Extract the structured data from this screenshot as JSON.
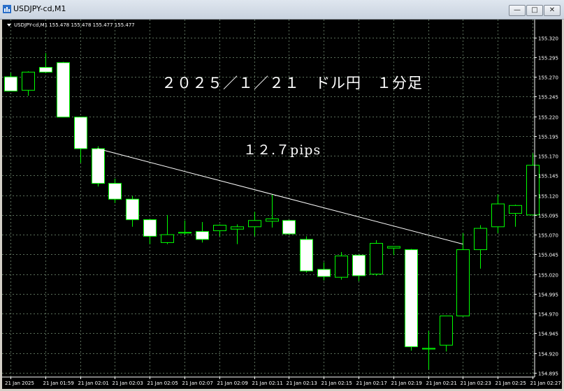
{
  "window": {
    "title": "USDJPY-cd,M1",
    "min_label": "—",
    "max_label": "□",
    "close_label": "✕"
  },
  "info_line": "USDJPY-cd,M1  155.478 155.478 155.477 155.477",
  "annotation_title": "２０２５／１／２１　ドル円　１分足",
  "annotation_pips": "１２.７pips",
  "colors": {
    "bull": "#00ff00",
    "bear_fill": "#ffffff",
    "grid": "#5a6e5a",
    "trendline": "#ffffff"
  },
  "chart_data": {
    "type": "candlestick",
    "title": "",
    "ylim": [
      154.89,
      155.33
    ],
    "yticks": [
      "155.320",
      "155.295",
      "155.270",
      "155.245",
      "155.220",
      "155.195",
      "155.170",
      "155.145",
      "155.120",
      "155.095",
      "155.070",
      "155.045",
      "155.020",
      "154.995",
      "154.970",
      "154.945",
      "154.920",
      "154.895"
    ],
    "xtick_labels": [
      "21 Jan 2025",
      "21 Jan 01:59",
      "21 Jan 02:01",
      "21 Jan 02:03",
      "21 Jan 02:05",
      "21 Jan 02:07",
      "21 Jan 02:09",
      "21 Jan 02:11",
      "21 Jan 02:13",
      "21 Jan 02:15",
      "21 Jan 02:17",
      "21 Jan 02:19",
      "21 Jan 02:21",
      "21 Jan 02:23",
      "21 Jan 02:25",
      "21 Jan 02:27"
    ],
    "candles": [
      {
        "o": 155.27,
        "h": 155.275,
        "l": 155.252,
        "c": 155.252
      },
      {
        "o": 155.253,
        "h": 155.277,
        "l": 155.246,
        "c": 155.276
      },
      {
        "o": 155.282,
        "h": 155.3,
        "l": 155.275,
        "c": 155.276
      },
      {
        "o": 155.288,
        "h": 155.289,
        "l": 155.219,
        "c": 155.219
      },
      {
        "o": 155.219,
        "h": 155.219,
        "l": 155.161,
        "c": 155.179
      },
      {
        "o": 155.179,
        "h": 155.182,
        "l": 155.131,
        "c": 155.135
      },
      {
        "o": 155.135,
        "h": 155.141,
        "l": 155.11,
        "c": 155.115
      },
      {
        "o": 155.115,
        "h": 155.119,
        "l": 155.08,
        "c": 155.089
      },
      {
        "o": 155.089,
        "h": 155.089,
        "l": 155.058,
        "c": 155.068
      },
      {
        "o": 155.06,
        "h": 155.095,
        "l": 155.058,
        "c": 155.07
      },
      {
        "o": 155.072,
        "h": 155.088,
        "l": 155.07,
        "c": 155.073
      },
      {
        "o": 155.074,
        "h": 155.086,
        "l": 155.06,
        "c": 155.064
      },
      {
        "o": 155.075,
        "h": 155.083,
        "l": 155.068,
        "c": 155.082
      },
      {
        "o": 155.077,
        "h": 155.083,
        "l": 155.058,
        "c": 155.08
      },
      {
        "o": 155.08,
        "h": 155.099,
        "l": 155.068,
        "c": 155.088
      },
      {
        "o": 155.087,
        "h": 155.121,
        "l": 155.079,
        "c": 155.09
      },
      {
        "o": 155.088,
        "h": 155.089,
        "l": 155.07,
        "c": 155.071
      },
      {
        "o": 155.064,
        "h": 155.068,
        "l": 155.022,
        "c": 155.024
      },
      {
        "o": 155.026,
        "h": 155.035,
        "l": 155.012,
        "c": 155.017
      },
      {
        "o": 155.016,
        "h": 155.048,
        "l": 155.013,
        "c": 155.043
      },
      {
        "o": 155.044,
        "h": 155.045,
        "l": 155.011,
        "c": 155.018
      },
      {
        "o": 155.02,
        "h": 155.063,
        "l": 155.018,
        "c": 155.059
      },
      {
        "o": 155.053,
        "h": 155.055,
        "l": 155.044,
        "c": 155.055
      },
      {
        "o": 155.051,
        "h": 155.052,
        "l": 154.923,
        "c": 154.928
      },
      {
        "o": 154.925,
        "h": 154.948,
        "l": 154.899,
        "c": 154.926
      },
      {
        "o": 154.93,
        "h": 154.967,
        "l": 154.922,
        "c": 154.967
      },
      {
        "o": 154.967,
        "h": 155.072,
        "l": 154.967,
        "c": 155.051
      },
      {
        "o": 155.051,
        "h": 155.082,
        "l": 155.027,
        "c": 155.078
      },
      {
        "o": 155.08,
        "h": 155.121,
        "l": 155.072,
        "c": 155.109
      },
      {
        "o": 155.097,
        "h": 155.108,
        "l": 155.08,
        "c": 155.107
      },
      {
        "o": 155.095,
        "h": 155.173,
        "l": 155.095,
        "c": 155.158
      }
    ],
    "trendline": {
      "from": {
        "index": 5,
        "price": 155.179
      },
      "to": {
        "index": 26,
        "price": 155.058
      }
    }
  }
}
